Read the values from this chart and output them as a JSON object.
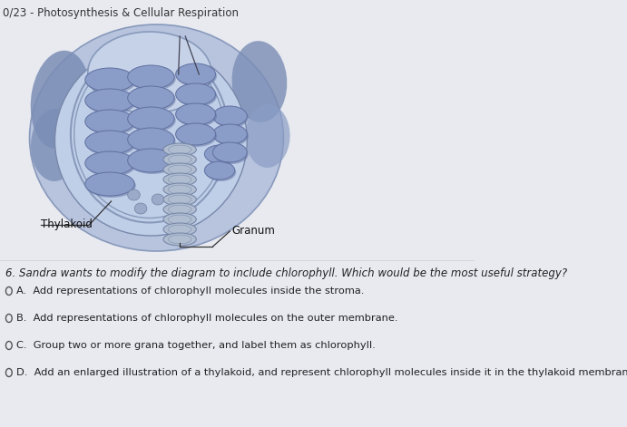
{
  "title": "0/23 - Photosynthesis & Cellular Respiration",
  "question": "6. Sandra wants to modify the diagram to include chlorophyll. Which would be the most useful strategy?",
  "options": [
    "A.  Add representations of chlorophyll molecules inside the stroma.",
    "B.  Add representations of chlorophyll molecules on the outer membrane.",
    "C.  Group two or more grana together, and label them as chlorophyll.",
    "D.  Add an enlarged illustration of a thylakoid, and represent chlorophyll molecules inside it in the thylakoid membrane."
  ],
  "bg_color": "#e8eaf0",
  "panel_bg": "#f0f0f4",
  "title_color": "#333333",
  "text_color": "#222222",
  "outer_ellipse_fill": "#b8c8e0",
  "outer_ellipse_edge": "#8899bb",
  "inner_membrane_fill": "#c8d4e8",
  "inner_membrane_edge": "#7788aa",
  "dark_blob_color": "#7a8db0",
  "granum_fill": "#8090b8",
  "granum_edge": "#6070a0",
  "granum_light": "#9aaad0",
  "thin_granum_fill": "#aab8d0",
  "thin_granum_edge": "#8090b0",
  "teardrop_fill": "#b0bfd8",
  "teardrop_edge": "#7888aa",
  "question_style": "italic",
  "radio_color": "#555555",
  "option_fontsize": 8.2,
  "question_fontsize": 8.5
}
